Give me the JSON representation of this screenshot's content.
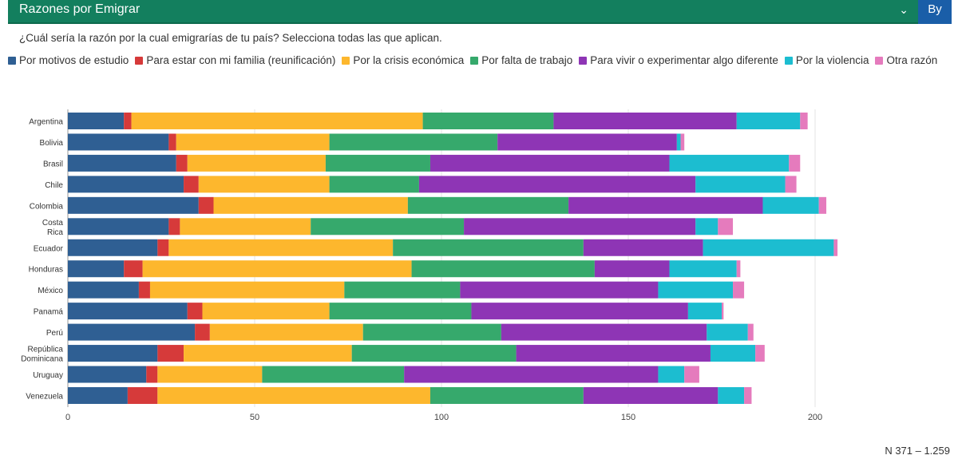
{
  "header": {
    "title": "Razones por Emigrar",
    "chevron_icon": "chevron-down-icon",
    "by_label": "By"
  },
  "question": "¿Cuál sería la razón por la cual emigrarías de tu país? Selecciona todas las que aplican.",
  "footer": {
    "n_label": "N 371 – 1.259"
  },
  "chart_data": {
    "type": "bar",
    "orientation": "horizontal",
    "stacked": true,
    "categories": [
      "Argentina",
      "Bolivia",
      "Brasil",
      "Chile",
      "Colombia",
      "Costa Rica",
      "Ecuador",
      "Honduras",
      "México",
      "Panamá",
      "Perú",
      "República Dominicana",
      "Uruguay",
      "Venezuela"
    ],
    "category_lines": [
      [
        "Argentina"
      ],
      [
        "Bolivia"
      ],
      [
        "Brasil"
      ],
      [
        "Chile"
      ],
      [
        "Colombia"
      ],
      [
        "Costa",
        "Rica"
      ],
      [
        "Ecuador"
      ],
      [
        "Honduras"
      ],
      [
        "México"
      ],
      [
        "Panamá"
      ],
      [
        "Perú"
      ],
      [
        "República",
        "Dominicana"
      ],
      [
        "Uruguay"
      ],
      [
        "Venezuela"
      ]
    ],
    "series": [
      {
        "name": "Por motivos de estudio",
        "color": "#2f5f93",
        "values": [
          15,
          27,
          29,
          31,
          35,
          27,
          24,
          15,
          19,
          32,
          34,
          24,
          21,
          16
        ]
      },
      {
        "name": "Para estar con mi familia (reunificación)",
        "color": "#d63a3a",
        "values": [
          2,
          2,
          3,
          4,
          4,
          3,
          3,
          5,
          3,
          4,
          4,
          7,
          3,
          8
        ]
      },
      {
        "name": "Por la crisis económica",
        "color": "#fdb72d",
        "values": [
          78,
          41,
          37,
          35,
          52,
          35,
          60,
          72,
          52,
          34,
          41,
          45,
          28,
          73
        ]
      },
      {
        "name": "Por falta de trabajo",
        "color": "#36a96c",
        "values": [
          35,
          45,
          28,
          24,
          43,
          41,
          51,
          49,
          31,
          38,
          37,
          44,
          38,
          41
        ]
      },
      {
        "name": "Para vivir o experimentar algo diferente",
        "color": "#8e35b5",
        "values": [
          49,
          48,
          64,
          74,
          52,
          62,
          32,
          20,
          53,
          58,
          55,
          52,
          68,
          36
        ]
      },
      {
        "name": "Por la violencia",
        "color": "#1cbdd0",
        "values": [
          17,
          1,
          32,
          24,
          15,
          6,
          35,
          18,
          20,
          9,
          11,
          12,
          7,
          7
        ]
      },
      {
        "name": "Otra razón",
        "color": "#e57bbd",
        "values": [
          2,
          1,
          3,
          3,
          2,
          4,
          1,
          1,
          3,
          0.5,
          1.5,
          2.5,
          4,
          2
        ]
      }
    ],
    "xlim": [
      0,
      200
    ],
    "xticks": [
      "0",
      "50",
      "100",
      "150",
      "200"
    ],
    "grid": true,
    "legend_position": "top"
  }
}
